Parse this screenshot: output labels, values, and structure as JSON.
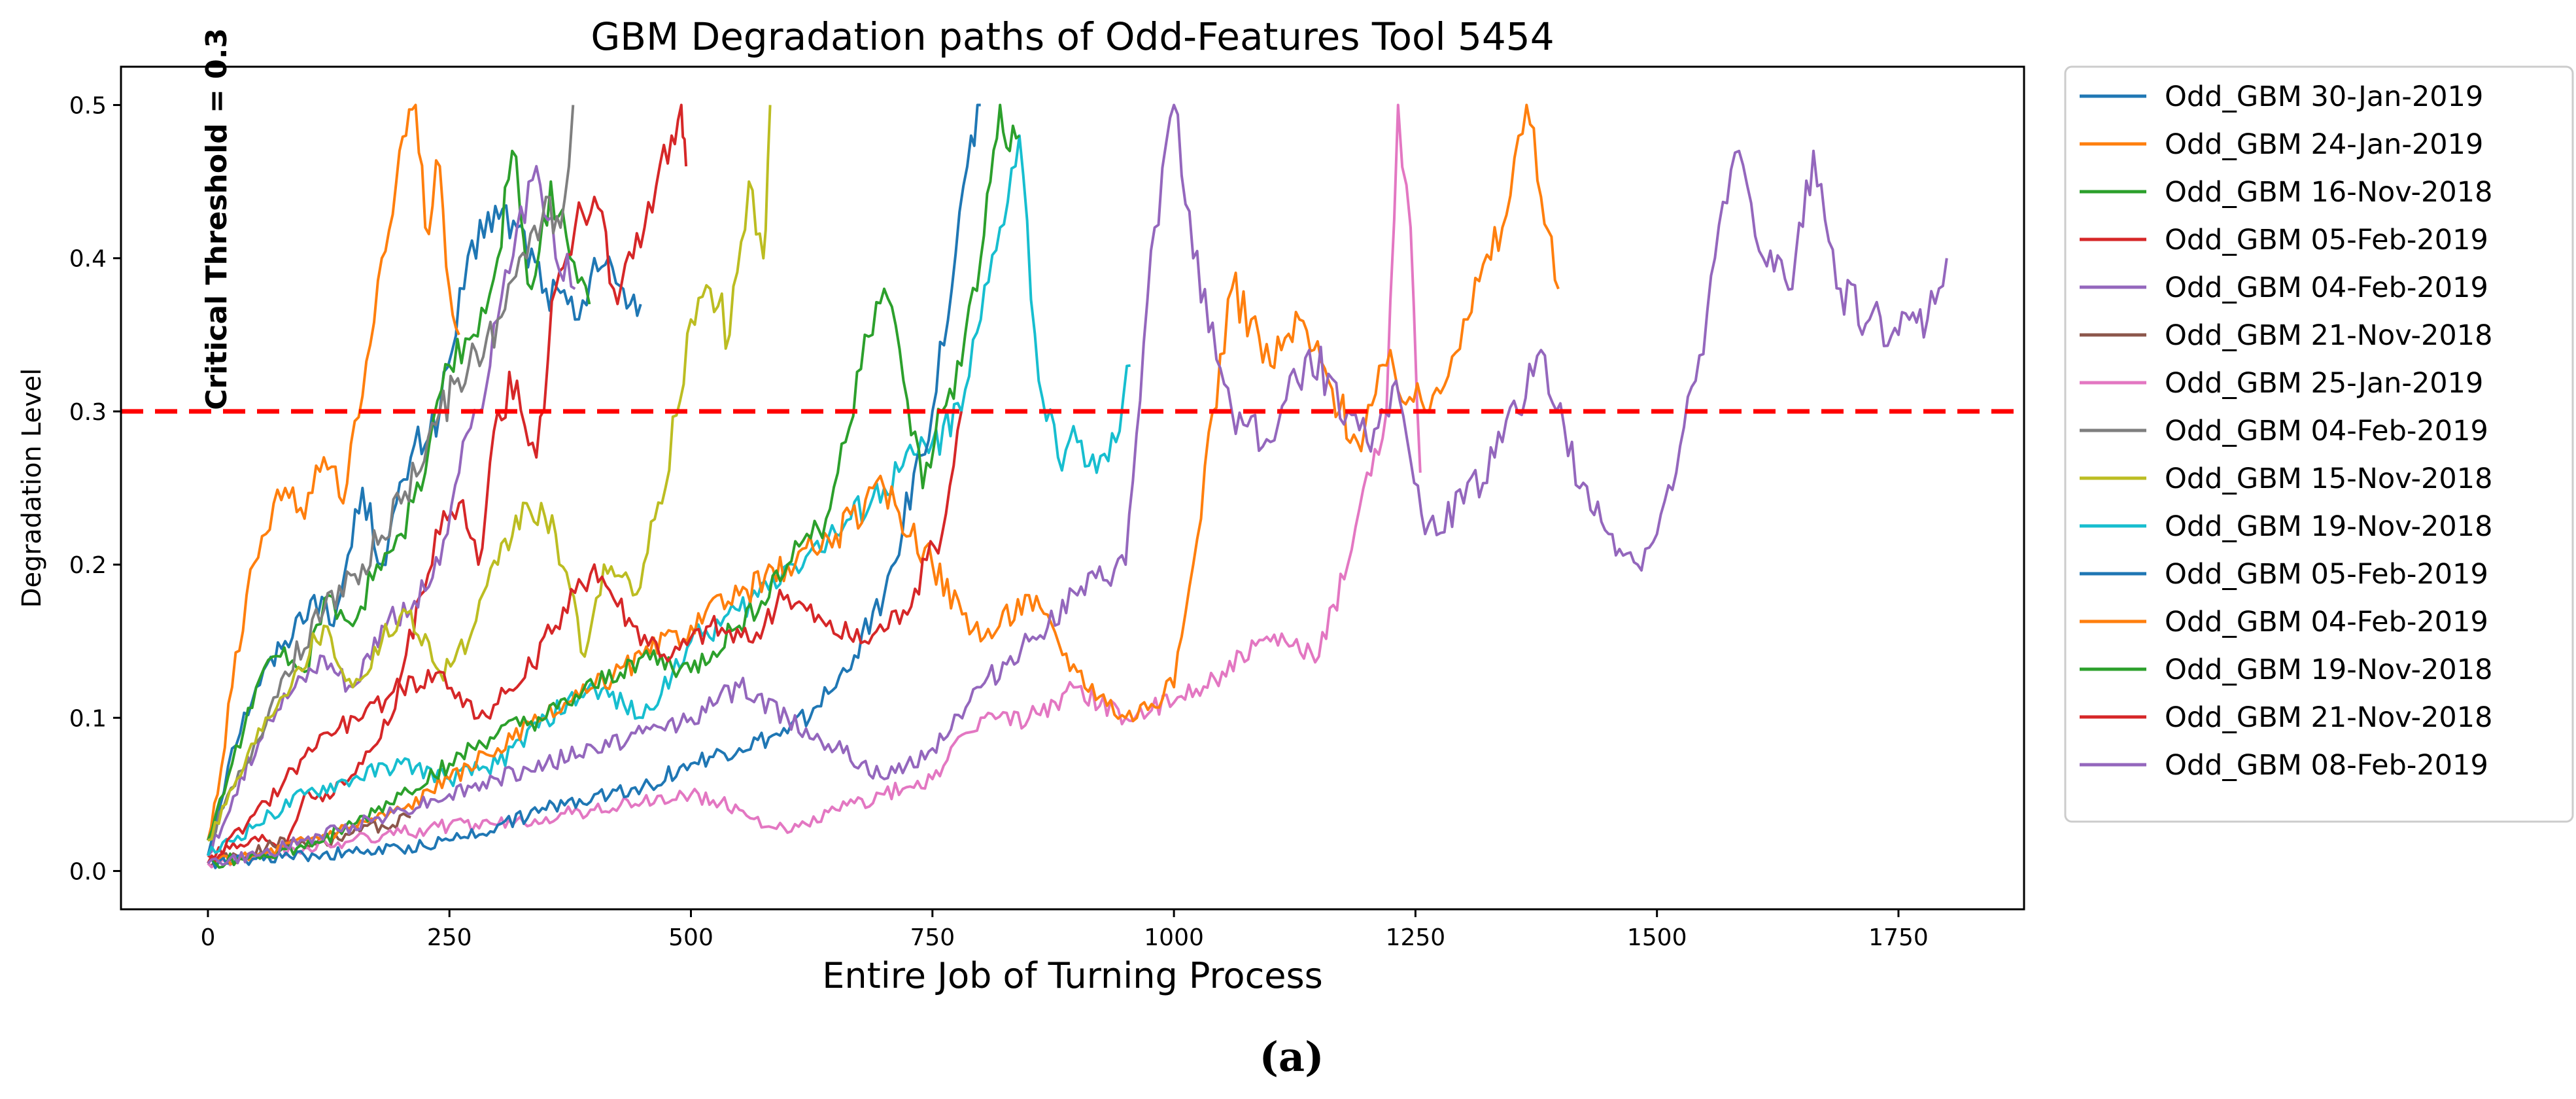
{
  "chart_data": {
    "type": "line",
    "title": "GBM Degradation paths of Odd-Features Tool 5454",
    "xlabel": "Entire Job of Turning Process",
    "ylabel": "Degradation Level",
    "xlim": [
      -90,
      1880
    ],
    "ylim": [
      -0.025,
      0.525
    ],
    "xticks": [
      0,
      250,
      500,
      750,
      1000,
      1250,
      1500,
      1750
    ],
    "yticks": [
      0.0,
      0.1,
      0.2,
      0.3,
      0.4,
      0.5
    ],
    "threshold": {
      "value": 0.3,
      "label": "Critical Threshold = 0.3",
      "color": "#ff0000"
    },
    "legend_position": "outside-right",
    "series": [
      {
        "name": "Odd_GBM 30-Jan-2019",
        "color": "#1f77b4",
        "x": [
          0,
          25,
          50,
          80,
          110,
          130,
          160,
          180,
          210,
          240,
          265,
          290,
          320,
          350,
          380,
          400,
          430,
          448
        ],
        "y": [
          0.01,
          0.08,
          0.12,
          0.15,
          0.18,
          0.16,
          0.25,
          0.2,
          0.27,
          0.3,
          0.38,
          0.43,
          0.42,
          0.38,
          0.36,
          0.4,
          0.38,
          0.37
        ]
      },
      {
        "name": "Odd_GBM 24-Jan-2019",
        "color": "#ff7f0e",
        "x": [
          0,
          10,
          25,
          40,
          60,
          80,
          100,
          120,
          140,
          160,
          180,
          195,
          205,
          215,
          225,
          240,
          250,
          260
        ],
        "y": [
          0.02,
          0.05,
          0.12,
          0.18,
          0.22,
          0.25,
          0.23,
          0.27,
          0.24,
          0.31,
          0.4,
          0.45,
          0.48,
          0.5,
          0.42,
          0.46,
          0.38,
          0.35
        ]
      },
      {
        "name": "Odd_GBM 16-Nov-2018",
        "color": "#2ca02c",
        "x": [
          0,
          25,
          50,
          75,
          100,
          125,
          150,
          175,
          200,
          225,
          250,
          275,
          300,
          315,
          335,
          355,
          375,
          395
        ],
        "y": [
          0.02,
          0.07,
          0.12,
          0.14,
          0.13,
          0.18,
          0.16,
          0.2,
          0.22,
          0.26,
          0.33,
          0.35,
          0.4,
          0.47,
          0.38,
          0.45,
          0.4,
          0.37
        ]
      },
      {
        "name": "Odd_GBM 05-Feb-2019",
        "color": "#d62728",
        "x": [
          0,
          30,
          60,
          80,
          100,
          130,
          160,
          190,
          220,
          240,
          260,
          280,
          300,
          320,
          340,
          360,
          380,
          400,
          420,
          440,
          460,
          480,
          490,
          495
        ],
        "y": [
          0.01,
          0.015,
          0.02,
          0.015,
          0.05,
          0.05,
          0.07,
          0.1,
          0.18,
          0.22,
          0.24,
          0.2,
          0.3,
          0.32,
          0.27,
          0.38,
          0.42,
          0.44,
          0.38,
          0.4,
          0.43,
          0.48,
          0.5,
          0.46
        ]
      },
      {
        "name": "Odd_GBM 04-Feb-2019",
        "color": "#9467bd",
        "x": [
          0,
          30,
          60,
          90,
          120,
          150,
          180,
          210,
          240,
          260,
          280,
          300,
          320,
          340,
          360,
          380
        ],
        "y": [
          0.01,
          0.05,
          0.1,
          0.12,
          0.14,
          0.12,
          0.16,
          0.17,
          0.2,
          0.26,
          0.3,
          0.36,
          0.42,
          0.46,
          0.4,
          0.38
        ]
      },
      {
        "name": "Odd_GBM 21-Nov-2018",
        "color": "#8c564b",
        "x": [
          0,
          30,
          60,
          90,
          120,
          150,
          180,
          210
        ],
        "y": [
          0.005,
          0.01,
          0.015,
          0.02,
          0.02,
          0.025,
          0.03,
          0.035
        ]
      },
      {
        "name": "Odd_GBM 25-Jan-2019",
        "color": "#e377c2",
        "x": [
          0,
          50,
          100,
          150,
          200,
          250,
          300,
          350,
          400,
          450,
          500,
          550,
          600,
          650,
          700,
          750,
          800,
          850,
          900,
          950,
          1000,
          1050,
          1100,
          1150,
          1180,
          1200,
          1220,
          1232,
          1245,
          1255
        ],
        "y": [
          0.005,
          0.01,
          0.015,
          0.02,
          0.025,
          0.03,
          0.03,
          0.035,
          0.04,
          0.045,
          0.05,
          0.04,
          0.025,
          0.04,
          0.05,
          0.06,
          0.1,
          0.1,
          0.12,
          0.1,
          0.11,
          0.13,
          0.15,
          0.14,
          0.2,
          0.26,
          0.3,
          0.5,
          0.42,
          0.26
        ]
      },
      {
        "name": "Odd_GBM 04-Feb-2019",
        "color": "#7f7f7f",
        "x": [
          0,
          40,
          80,
          120,
          160,
          200,
          240,
          270,
          300,
          330,
          350,
          365,
          378
        ],
        "y": [
          0.02,
          0.07,
          0.13,
          0.17,
          0.2,
          0.24,
          0.3,
          0.33,
          0.36,
          0.4,
          0.44,
          0.42,
          0.5
        ]
      },
      {
        "name": "Odd_GBM 15-Nov-2018",
        "color": "#bcbd22",
        "x": [
          0,
          30,
          60,
          90,
          120,
          150,
          180,
          210,
          240,
          270,
          300,
          330,
          360,
          390,
          410,
          440,
          470,
          500,
          520,
          540,
          560,
          575,
          582
        ],
        "y": [
          0.02,
          0.06,
          0.1,
          0.13,
          0.16,
          0.12,
          0.15,
          0.17,
          0.13,
          0.15,
          0.2,
          0.24,
          0.22,
          0.14,
          0.2,
          0.18,
          0.24,
          0.36,
          0.38,
          0.35,
          0.45,
          0.4,
          0.5
        ]
      },
      {
        "name": "Odd_GBM 19-Nov-2018",
        "color": "#17becf",
        "x": [
          0,
          50,
          100,
          150,
          200,
          250,
          300,
          350,
          400,
          450,
          500,
          550,
          600,
          650,
          700,
          750,
          780,
          800,
          820,
          840,
          860,
          880,
          900,
          920,
          940,
          955
        ],
        "y": [
          0.01,
          0.03,
          0.05,
          0.06,
          0.07,
          0.06,
          0.07,
          0.1,
          0.12,
          0.1,
          0.15,
          0.17,
          0.2,
          0.22,
          0.25,
          0.28,
          0.3,
          0.36,
          0.42,
          0.48,
          0.32,
          0.27,
          0.28,
          0.26,
          0.28,
          0.33
        ]
      },
      {
        "name": "Odd_GBM 05-Feb-2019",
        "color": "#1f77b4",
        "x": [
          0,
          50,
          100,
          150,
          200,
          250,
          300,
          350,
          400,
          450,
          500,
          550,
          600,
          650,
          700,
          750,
          770,
          790,
          800
        ],
        "y": [
          0.005,
          0.008,
          0.01,
          0.012,
          0.014,
          0.02,
          0.03,
          0.04,
          0.05,
          0.055,
          0.07,
          0.08,
          0.09,
          0.12,
          0.18,
          0.3,
          0.38,
          0.48,
          0.5
        ]
      },
      {
        "name": "Odd_GBM 04-Feb-2019",
        "color": "#ff7f0e",
        "x": [
          0,
          50,
          100,
          150,
          200,
          250,
          300,
          350,
          400,
          450,
          500,
          550,
          600,
          650,
          700,
          750,
          800,
          850,
          900,
          950,
          1000,
          1020,
          1040,
          1060,
          1080,
          1100,
          1130,
          1160,
          1190,
          1220,
          1260,
          1300,
          1340,
          1365,
          1380,
          1398
        ],
        "y": [
          0.005,
          0.01,
          0.02,
          0.03,
          0.04,
          0.06,
          0.08,
          0.1,
          0.12,
          0.14,
          0.16,
          0.18,
          0.2,
          0.22,
          0.25,
          0.2,
          0.15,
          0.18,
          0.13,
          0.1,
          0.12,
          0.2,
          0.3,
          0.38,
          0.36,
          0.33,
          0.36,
          0.32,
          0.28,
          0.33,
          0.3,
          0.36,
          0.42,
          0.5,
          0.44,
          0.38
        ]
      },
      {
        "name": "Odd_GBM 19-Nov-2018",
        "color": "#2ca02c",
        "x": [
          0,
          50,
          100,
          150,
          200,
          250,
          300,
          350,
          400,
          450,
          500,
          550,
          600,
          620,
          640,
          660,
          680,
          700,
          720,
          740,
          760,
          780,
          800,
          810,
          820,
          830,
          840
        ],
        "y": [
          0.005,
          0.01,
          0.015,
          0.03,
          0.05,
          0.07,
          0.09,
          0.1,
          0.12,
          0.14,
          0.13,
          0.16,
          0.2,
          0.22,
          0.23,
          0.28,
          0.35,
          0.38,
          0.32,
          0.25,
          0.3,
          0.33,
          0.4,
          0.45,
          0.5,
          0.47,
          0.48
        ]
      },
      {
        "name": "Odd_GBM 21-Nov-2018",
        "color": "#d62728",
        "x": [
          0,
          40,
          80,
          120,
          160,
          200,
          240,
          280,
          320,
          360,
          400,
          440,
          480,
          520,
          560,
          600,
          640,
          680,
          720,
          760,
          780
        ],
        "y": [
          0.005,
          0.03,
          0.06,
          0.09,
          0.1,
          0.12,
          0.13,
          0.1,
          0.12,
          0.16,
          0.2,
          0.16,
          0.14,
          0.16,
          0.15,
          0.18,
          0.16,
          0.15,
          0.17,
          0.22,
          0.3
        ]
      },
      {
        "name": "Odd_GBM 08-Feb-2019",
        "color": "#9467bd",
        "x": [
          0,
          50,
          100,
          150,
          200,
          250,
          300,
          350,
          400,
          450,
          500,
          550,
          600,
          650,
          700,
          750,
          800,
          850,
          900,
          950,
          980,
          1000,
          1020,
          1060,
          1100,
          1140,
          1180,
          1200,
          1230,
          1260,
          1300,
          1340,
          1380,
          1420,
          1450,
          1480,
          1500,
          1520,
          1540,
          1560,
          1585,
          1610,
          1640,
          1662,
          1690,
          1720,
          1750,
          1780,
          1800
        ],
        "y": [
          0.005,
          0.01,
          0.02,
          0.03,
          0.04,
          0.05,
          0.06,
          0.07,
          0.08,
          0.09,
          0.1,
          0.12,
          0.1,
          0.08,
          0.06,
          0.08,
          0.12,
          0.15,
          0.18,
          0.2,
          0.42,
          0.5,
          0.4,
          0.3,
          0.28,
          0.34,
          0.3,
          0.28,
          0.32,
          0.22,
          0.24,
          0.28,
          0.34,
          0.25,
          0.22,
          0.2,
          0.22,
          0.26,
          0.32,
          0.4,
          0.47,
          0.4,
          0.38,
          0.47,
          0.38,
          0.36,
          0.35,
          0.36,
          0.4
        ]
      }
    ],
    "caption": "(a)"
  }
}
